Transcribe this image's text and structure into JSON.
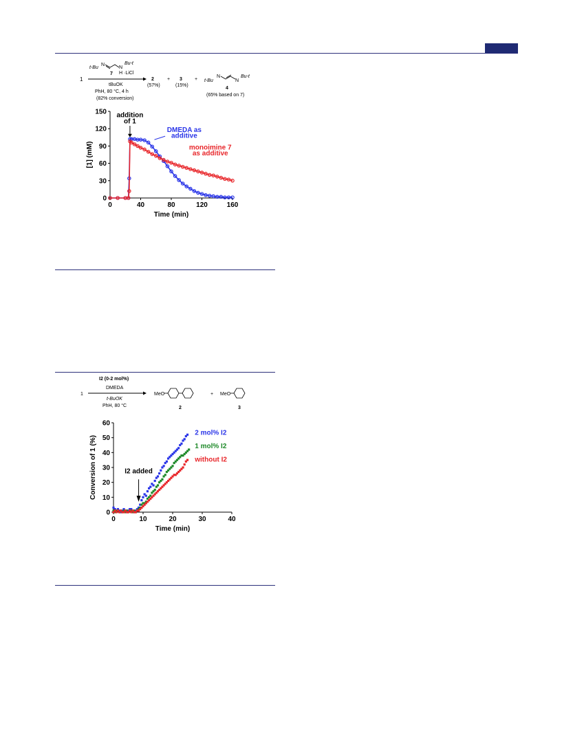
{
  "colors": {
    "rule": "#2b2f7a",
    "header_tab": "#1f2a73",
    "blue": "#2a35e8",
    "red": "#e8262a",
    "green": "#1f8a2a"
  },
  "scheme1": {
    "substrate": "1",
    "reagent_line1": "t-Bu",
    "reagent_n1": "N",
    "reagent_n2": "N",
    "reagent_tbu_right": "Bu-t",
    "reagent_h": "H",
    "reagent_licl": "·LiCl",
    "reagent_number": "7",
    "base": "tBuOK",
    "cond1": "PhH, 80 °C, 4 h",
    "cond2": "(82% conversion)",
    "p1": "2",
    "p1_yield": "(57%)",
    "plus1": "+",
    "p2": "3",
    "p2_yield": "(15%)",
    "plus2": "+",
    "p3_left": "t-Bu",
    "p3_n1": "N",
    "p3_n2": "N",
    "p3_right": "Bu-t",
    "p3": "4",
    "p3_yield": "(65% based on 7)"
  },
  "scheme2": {
    "substrate": "1",
    "cat": "I2 (0-2 mol%)",
    "ligand": "DMEDA",
    "base": "t-BuOK",
    "cond": "PhH, 80 °C",
    "p1_meo": "MeO",
    "p1": "2",
    "plus": "+",
    "p2_meo": "MeO",
    "p2": "3"
  },
  "chart1_text": {
    "annotation_line1": "addition",
    "annotation_line2": "of 1",
    "label_blue_1": "DMEDA as",
    "label_blue_2": "additive",
    "label_red_1": "monoimine 7",
    "label_red_2": "as additive"
  },
  "chart2_text": {
    "annotation": "I2 added",
    "label_blue": "2 mol% I2",
    "label_green": "1 mol% I2",
    "label_red": "without  I2"
  },
  "chart_data": [
    {
      "type": "scatter",
      "xlabel": "Time (min)",
      "ylabel": "[1] (mM)",
      "xlim": [
        0,
        160
      ],
      "ylim": [
        0,
        150
      ],
      "xticks": [
        0,
        40,
        80,
        120,
        160
      ],
      "yticks": [
        0,
        30,
        60,
        90,
        120,
        150
      ],
      "grid": false,
      "series": [
        {
          "name": "DMEDA as additive",
          "color": "#2a35e8",
          "x": [
            0,
            10,
            20,
            24,
            25,
            26,
            28,
            32,
            36,
            40,
            45,
            50,
            55,
            60,
            65,
            70,
            75,
            80,
            85,
            90,
            95,
            100,
            105,
            110,
            115,
            120,
            125,
            130,
            135,
            140,
            145,
            150,
            155,
            160
          ],
          "y": [
            0,
            0,
            0,
            0,
            34,
            102,
            102,
            102,
            101,
            101,
            100,
            96,
            89,
            81,
            72,
            64,
            55,
            46,
            38,
            31,
            25,
            20,
            16,
            12,
            9,
            7,
            5,
            4,
            3,
            2,
            2,
            1,
            1,
            1
          ]
        },
        {
          "name": "monoimine 7 as additive",
          "color": "#e8262a",
          "x": [
            0,
            10,
            20,
            24,
            25,
            26,
            28,
            32,
            36,
            40,
            45,
            50,
            55,
            60,
            65,
            70,
            75,
            80,
            85,
            90,
            95,
            100,
            105,
            110,
            115,
            120,
            125,
            130,
            135,
            140,
            145,
            150,
            155,
            160
          ],
          "y": [
            0,
            0,
            0,
            0,
            12,
            98,
            96,
            93,
            90,
            87,
            84,
            80,
            76,
            73,
            69,
            66,
            63,
            61,
            58,
            56,
            54,
            52,
            50,
            48,
            46,
            44,
            42,
            40,
            39,
            37,
            35,
            33,
            32,
            30
          ]
        }
      ]
    },
    {
      "type": "scatter",
      "xlabel": "Time (min)",
      "ylabel": "Conversion of 1 (%)",
      "xlim": [
        0,
        40
      ],
      "ylim": [
        0,
        60
      ],
      "xticks": [
        0,
        10,
        20,
        30,
        40
      ],
      "yticks": [
        0,
        10,
        20,
        30,
        40,
        50,
        60
      ],
      "grid": false,
      "series": [
        {
          "name": "2 mol% I2",
          "color": "#2a35e8",
          "x": [
            0,
            0.5,
            1,
            1.5,
            2,
            2.5,
            3,
            3.5,
            4,
            4.5,
            5,
            5.5,
            6,
            6.5,
            7,
            7.5,
            8,
            8.5,
            9,
            9.5,
            10,
            10.5,
            11,
            11.5,
            12,
            12.5,
            13,
            13.5,
            14,
            14.5,
            15,
            15.5,
            16,
            16.5,
            17,
            17.5,
            18,
            18.5,
            19,
            19.5,
            20,
            20.5,
            21,
            21.5,
            22,
            22.5,
            23,
            23.5,
            24,
            24.5,
            25
          ],
          "y": [
            3,
            2,
            1,
            2,
            1,
            0,
            1,
            2,
            1,
            0,
            1,
            2,
            2,
            1,
            0,
            1,
            2,
            3,
            5,
            8,
            10,
            12,
            11,
            14,
            16,
            17,
            19,
            18,
            21,
            23,
            24,
            26,
            28,
            30,
            31,
            33,
            34,
            36,
            37,
            38,
            39,
            40,
            41,
            42,
            43,
            45,
            46,
            48,
            49,
            51,
            52
          ]
        },
        {
          "name": "1 mol% I2",
          "color": "#1f8a2a",
          "x": [
            0,
            0.5,
            1,
            1.5,
            2,
            2.5,
            3,
            3.5,
            4,
            4.5,
            5,
            5.5,
            6,
            6.5,
            7,
            7.5,
            8,
            8.5,
            9,
            9.5,
            10,
            10.5,
            11,
            11.5,
            12,
            12.5,
            13,
            13.5,
            14,
            14.5,
            15,
            15.5,
            16,
            16.5,
            17,
            17.5,
            18,
            18.5,
            19,
            19.5,
            20,
            20.5,
            21,
            21.5,
            22,
            22.5,
            23,
            23.5,
            24,
            24.5,
            25,
            25.5
          ],
          "y": [
            1,
            0,
            1,
            1,
            0,
            1,
            0,
            1,
            0,
            1,
            0,
            1,
            1,
            0,
            1,
            0,
            1,
            2,
            3,
            5,
            6,
            6,
            7,
            9,
            10,
            11,
            13,
            14,
            15,
            17,
            18,
            20,
            21,
            22,
            24,
            25,
            27,
            28,
            29,
            30,
            31,
            33,
            34,
            35,
            36,
            37,
            38,
            38,
            39,
            40,
            41,
            42
          ]
        },
        {
          "name": "without I2",
          "color": "#e8262a",
          "x": [
            0,
            0.5,
            1,
            1.5,
            2,
            2.5,
            3,
            3.5,
            4,
            4.5,
            5,
            5.5,
            6,
            6.5,
            7,
            7.5,
            8,
            8.5,
            9,
            9.5,
            10,
            10.5,
            11,
            11.5,
            12,
            12.5,
            13,
            13.5,
            14,
            14.5,
            15,
            15.5,
            16,
            16.5,
            17,
            17.5,
            18,
            18.5,
            19,
            19.5,
            20,
            20.5,
            21,
            21.5,
            22,
            22.5,
            23,
            23.5,
            24,
            24.5,
            25
          ],
          "y": [
            0,
            1,
            0,
            1,
            0,
            1,
            0,
            0,
            1,
            0,
            0,
            1,
            0,
            1,
            0,
            0,
            1,
            1,
            2,
            3,
            4,
            5,
            6,
            7,
            8,
            9,
            10,
            11,
            12,
            13,
            14,
            15,
            16,
            17,
            18,
            19,
            20,
            21,
            22,
            23,
            24,
            25,
            25,
            26,
            27,
            28,
            29,
            30,
            32,
            34,
            35
          ]
        }
      ]
    }
  ]
}
